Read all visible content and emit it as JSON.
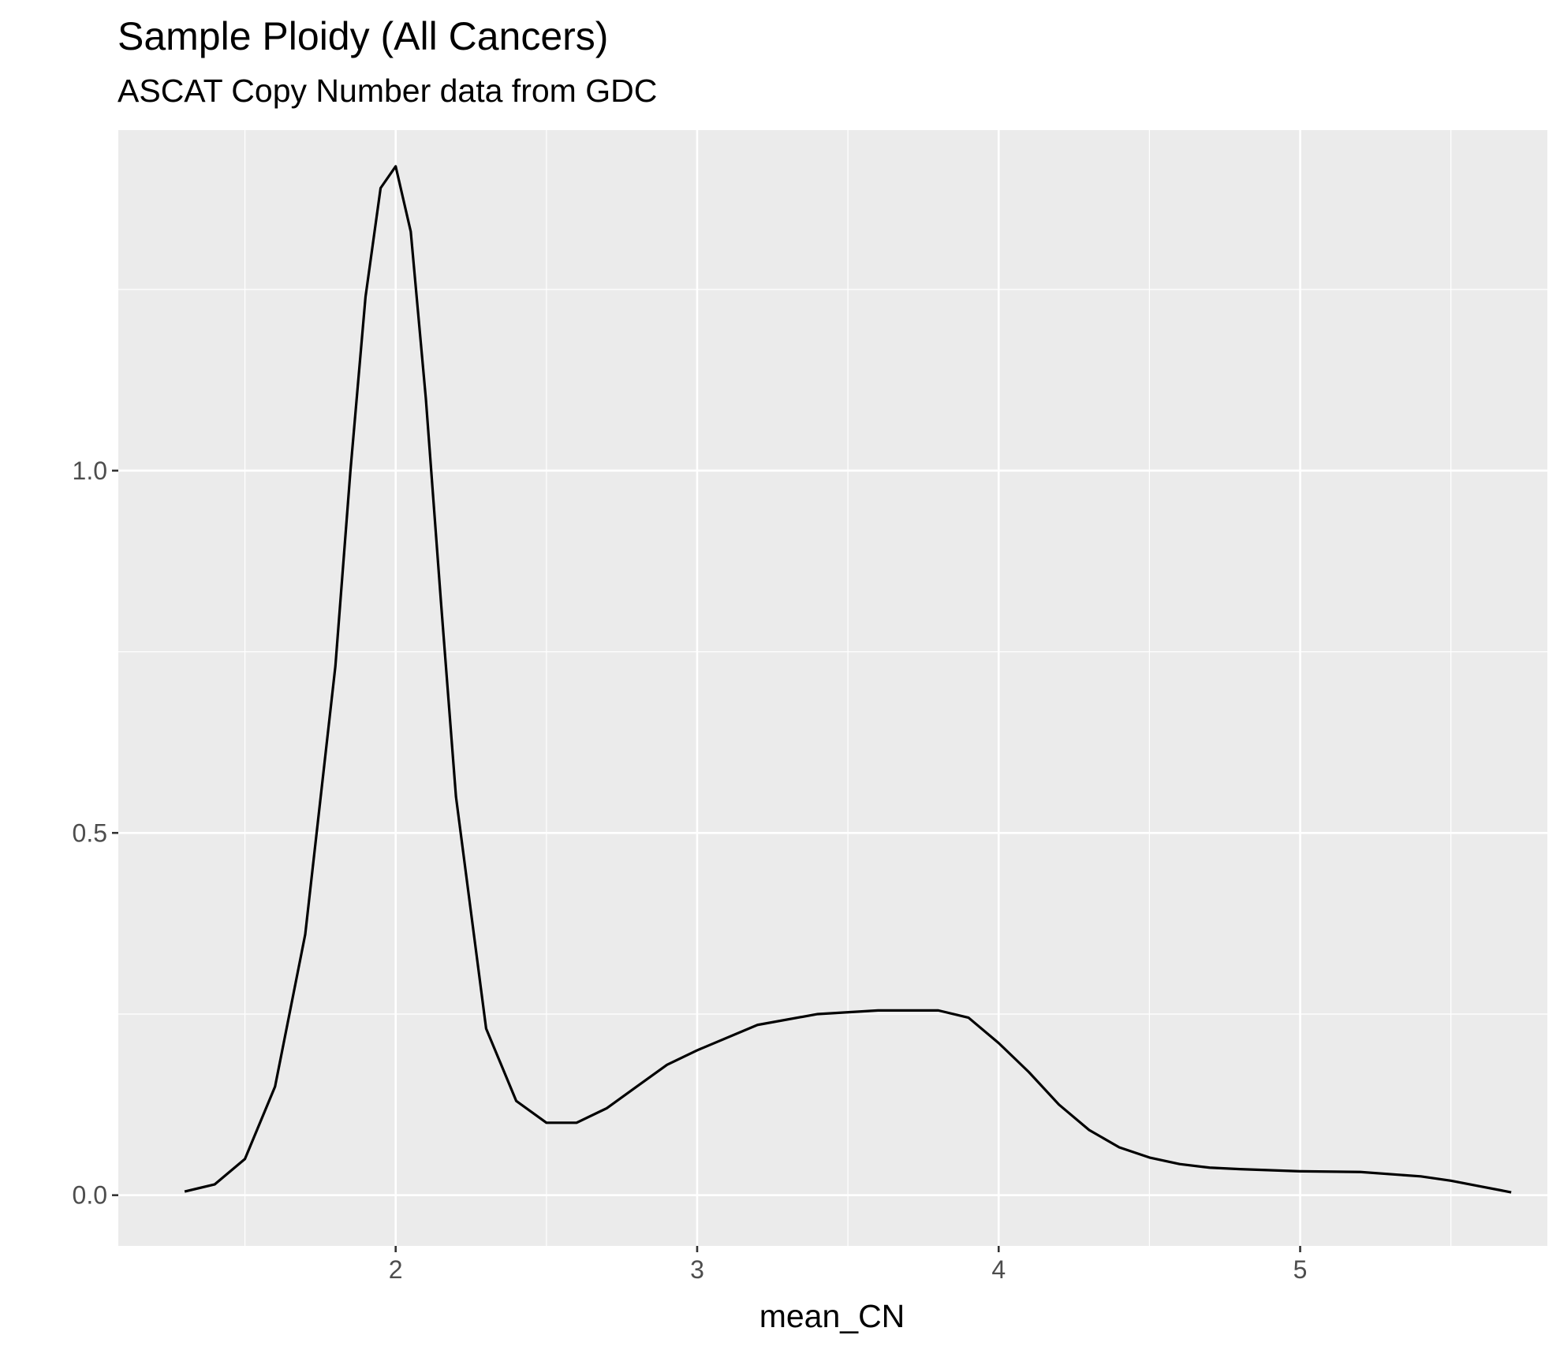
{
  "chart_data": {
    "type": "area",
    "geom": "density",
    "title": "Sample Ploidy (All Cancers)",
    "subtitle": "ASCAT Copy Number data from GDC",
    "xlabel": "mean_CN",
    "ylabel": "",
    "xlim": [
      1.08,
      5.82
    ],
    "ylim": [
      -0.07,
      1.47
    ],
    "x_ticks": [
      2,
      3,
      4,
      5
    ],
    "x_tick_labels": [
      "2",
      "3",
      "4",
      "5"
    ],
    "y_ticks": [
      0.0,
      0.5,
      1.0
    ],
    "y_tick_labels": [
      "0.0",
      "0.5",
      "1.0"
    ],
    "x_minor_grid": [
      1.5,
      2.5,
      3.5,
      4.5,
      5.5
    ],
    "y_minor_grid": [
      0.25,
      0.75,
      1.25
    ],
    "grid": true,
    "legend": "none",
    "colors": {
      "panel": "#ebebeb",
      "grid": "#ffffff",
      "line": "#000000",
      "tick_text": "#4d4d4d",
      "tick_mark": "#333333"
    },
    "series": [
      {
        "x": [
          1.3,
          1.4,
          1.5,
          1.6,
          1.7,
          1.8,
          1.85,
          1.9,
          1.95,
          2.0,
          2.05,
          2.1,
          2.15,
          2.2,
          2.3,
          2.4,
          2.5,
          2.6,
          2.7,
          2.8,
          2.9,
          3.0,
          3.2,
          3.4,
          3.6,
          3.8,
          3.9,
          4.0,
          4.1,
          4.2,
          4.3,
          4.4,
          4.5,
          4.6,
          4.7,
          4.8,
          5.0,
          5.2,
          5.4,
          5.5,
          5.6,
          5.7
        ],
        "y": [
          0.005,
          0.015,
          0.05,
          0.15,
          0.36,
          0.73,
          1.0,
          1.24,
          1.39,
          1.42,
          1.33,
          1.1,
          0.82,
          0.55,
          0.23,
          0.13,
          0.1,
          0.1,
          0.12,
          0.15,
          0.18,
          0.2,
          0.235,
          0.25,
          0.255,
          0.255,
          0.245,
          0.21,
          0.17,
          0.125,
          0.09,
          0.066,
          0.052,
          0.043,
          0.038,
          0.036,
          0.033,
          0.032,
          0.026,
          0.02,
          0.012,
          0.004
        ]
      }
    ]
  }
}
